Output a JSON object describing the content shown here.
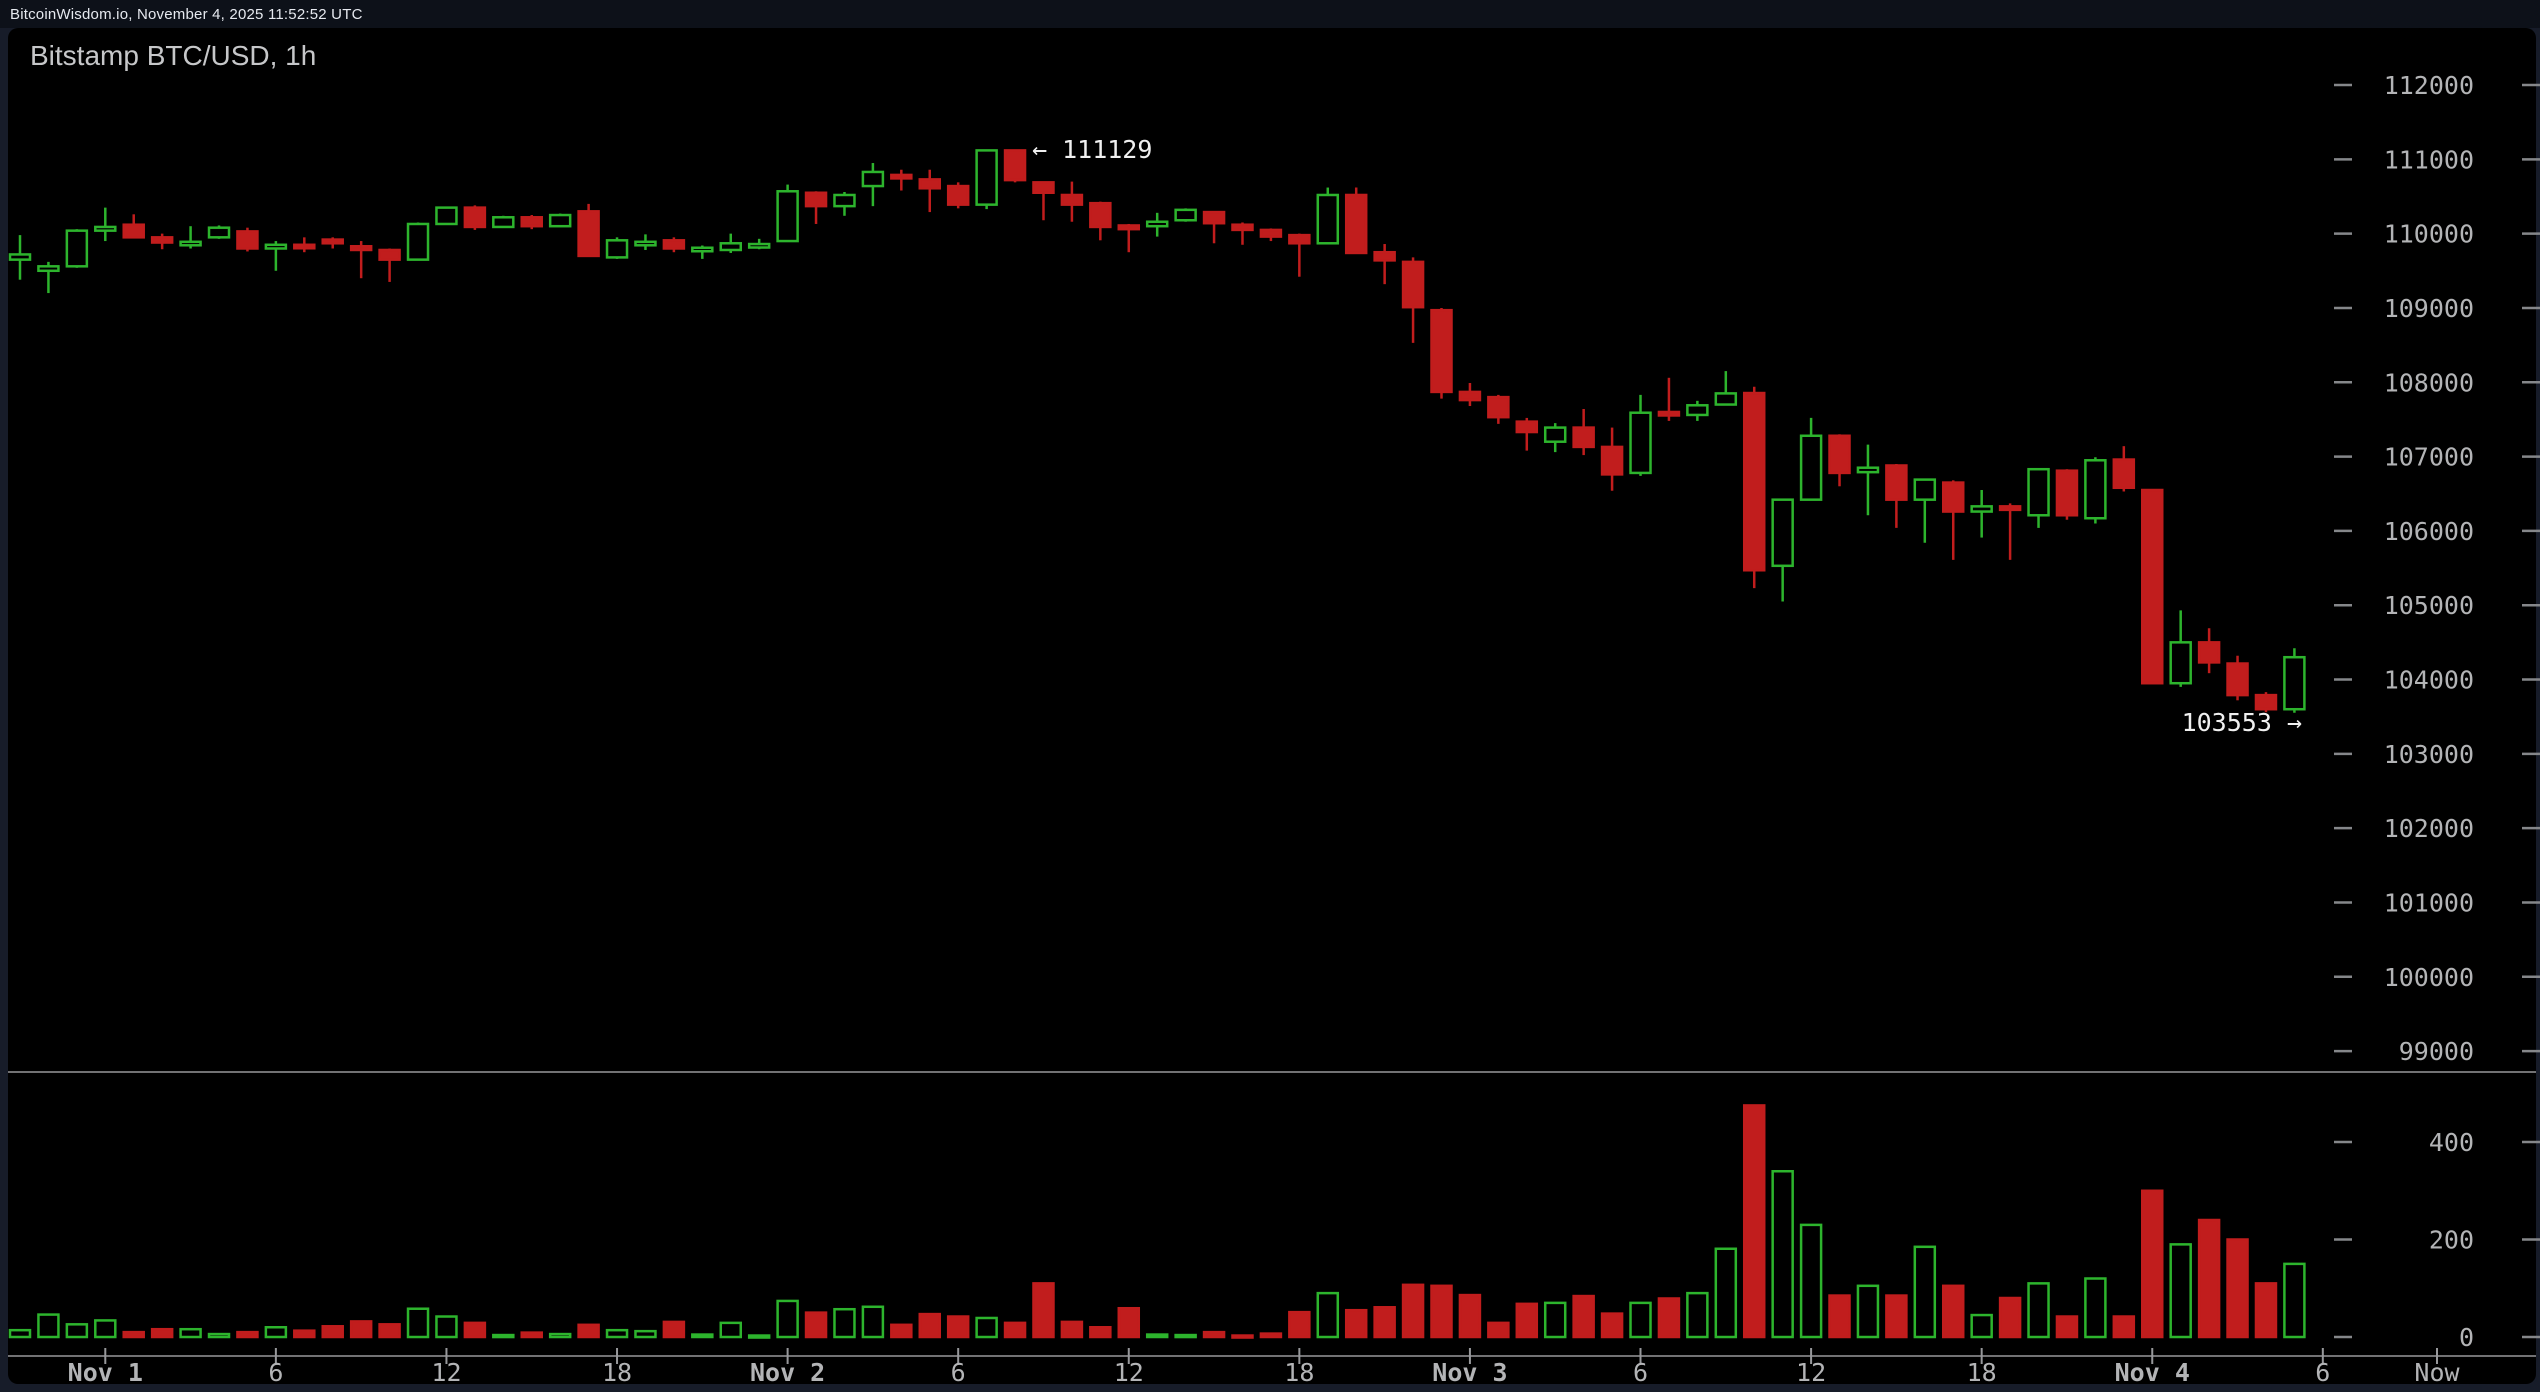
{
  "header": {
    "status_line": "BitcoinWisdom.io, November 4, 2025 11:52:52 UTC"
  },
  "main": {
    "title": "Bitstamp BTC/USD, 1h"
  },
  "colors": {
    "up": "#2db42d",
    "down": "#c11d1d",
    "annotation_text": "#f0f0f0",
    "axis_text": "#b3b4b6",
    "axis_line": "#97989b",
    "tick_dash": "#85878a",
    "panel_bg": "#000000",
    "page_bg": "#171c29",
    "header_bg": "#0d1119",
    "header_text": "#e6e9ef",
    "title_text": "#c6c7c9"
  },
  "chart_data": {
    "type": "candlestick",
    "title": "Bitstamp BTC/USD, 1h",
    "interval": "1h",
    "grid": false,
    "legend": false,
    "price_axis": {
      "side": "right",
      "ticks": [
        112000,
        111000,
        110000,
        109000,
        108000,
        107000,
        106000,
        105000,
        104000,
        103000,
        102000,
        101000,
        100000,
        99000
      ],
      "ylim": [
        98650,
        112470
      ]
    },
    "volume_axis": {
      "side": "right",
      "ticks": [
        400,
        200,
        0
      ],
      "ylim": [
        0,
        540
      ]
    },
    "time_axis": {
      "start": "Oct 31 21:00",
      "labels": [
        {
          "text": "Nov 1",
          "hour": 0,
          "day": true
        },
        {
          "text": "6",
          "hour": 6,
          "day": false
        },
        {
          "text": "12",
          "hour": 12,
          "day": false
        },
        {
          "text": "18",
          "hour": 18,
          "day": false
        },
        {
          "text": "Nov 2",
          "hour": 24,
          "day": true
        },
        {
          "text": "6",
          "hour": 30,
          "day": false
        },
        {
          "text": "12",
          "hour": 36,
          "day": false
        },
        {
          "text": "18",
          "hour": 42,
          "day": false
        },
        {
          "text": "Nov 3",
          "hour": 48,
          "day": true
        },
        {
          "text": "6",
          "hour": 54,
          "day": false
        },
        {
          "text": "12",
          "hour": 60,
          "day": false
        },
        {
          "text": "18",
          "hour": 66,
          "day": false
        },
        {
          "text": "Nov 4",
          "hour": 72,
          "day": true
        },
        {
          "text": "6",
          "hour": 78,
          "day": false
        },
        {
          "text": "Now",
          "x": 2437,
          "day": false
        }
      ]
    },
    "annotations": {
      "high": {
        "text": "← 111129",
        "value": 111129
      },
      "low": {
        "text": "103553 →",
        "value": 103553
      }
    },
    "series_format": [
      "open",
      "high",
      "low",
      "close",
      "volume"
    ],
    "candles": [
      [
        109650,
        109980,
        109380,
        109720,
        14
      ],
      [
        109500,
        109620,
        109200,
        109560,
        46
      ],
      [
        109560,
        110060,
        109540,
        110040,
        26
      ],
      [
        110040,
        110350,
        109900,
        110090,
        34
      ],
      [
        110120,
        110260,
        109940,
        109950,
        10
      ],
      [
        109950,
        110000,
        109790,
        109880,
        16
      ],
      [
        109860,
        110100,
        109800,
        109890,
        16
      ],
      [
        109950,
        110110,
        109930,
        110080,
        6
      ],
      [
        110030,
        110080,
        109760,
        109800,
        10
      ],
      [
        109800,
        109900,
        109500,
        109850,
        20
      ],
      [
        109850,
        109950,
        109750,
        109840,
        13
      ],
      [
        109920,
        109950,
        109800,
        109870,
        22
      ],
      [
        109830,
        109900,
        109400,
        109780,
        32
      ],
      [
        109780,
        109800,
        109350,
        109650,
        26
      ],
      [
        109650,
        110150,
        109640,
        110130,
        58
      ],
      [
        110130,
        110360,
        110120,
        110350,
        42
      ],
      [
        110350,
        110380,
        110050,
        110090,
        29
      ],
      [
        110090,
        110240,
        110080,
        110220,
        4
      ],
      [
        110220,
        110250,
        110060,
        110100,
        9
      ],
      [
        110100,
        110270,
        110090,
        110250,
        6
      ],
      [
        110300,
        110400,
        109690,
        109700,
        25
      ],
      [
        109680,
        109950,
        109660,
        109910,
        14
      ],
      [
        109850,
        109990,
        109780,
        109890,
        12
      ],
      [
        109910,
        109950,
        109750,
        109800,
        31
      ],
      [
        109780,
        109840,
        109660,
        109810,
        5
      ],
      [
        109780,
        110000,
        109740,
        109870,
        29
      ],
      [
        109830,
        109930,
        109790,
        109860,
        3
      ],
      [
        109900,
        110660,
        109890,
        110570,
        74
      ],
      [
        110550,
        110570,
        110130,
        110370,
        50
      ],
      [
        110370,
        110560,
        110240,
        110520,
        57
      ],
      [
        110640,
        110950,
        110370,
        110830,
        62
      ],
      [
        110790,
        110860,
        110580,
        110760,
        25
      ],
      [
        110730,
        110860,
        110290,
        110610,
        47
      ],
      [
        110640,
        110690,
        110340,
        110390,
        42
      ],
      [
        110390,
        111125,
        110330,
        111120,
        39
      ],
      [
        111120,
        111129,
        110690,
        110720,
        29
      ],
      [
        110690,
        110700,
        110180,
        110550,
        110
      ],
      [
        110520,
        110700,
        110160,
        110390,
        31
      ],
      [
        110410,
        110430,
        109910,
        110090,
        20
      ],
      [
        110110,
        110130,
        109750,
        110060,
        59
      ],
      [
        110100,
        110280,
        109960,
        110160,
        5
      ],
      [
        110180,
        110340,
        110160,
        110320,
        4
      ],
      [
        110290,
        110300,
        109870,
        110140,
        10
      ],
      [
        110120,
        110150,
        109850,
        110050,
        3
      ],
      [
        110050,
        110070,
        109900,
        109960,
        7
      ],
      [
        109980,
        110000,
        109420,
        109870,
        51
      ],
      [
        109870,
        110620,
        109860,
        110520,
        90
      ],
      [
        110520,
        110620,
        109730,
        109740,
        55
      ],
      [
        109750,
        109860,
        109320,
        109640,
        61
      ],
      [
        109620,
        109680,
        108530,
        109010,
        107
      ],
      [
        108970,
        109000,
        107780,
        107870,
        105
      ],
      [
        107870,
        107990,
        107680,
        107760,
        86
      ],
      [
        107800,
        107830,
        107440,
        107530,
        29
      ],
      [
        107470,
        107520,
        107080,
        107330,
        68
      ],
      [
        107200,
        107450,
        107060,
        107390,
        70
      ],
      [
        107390,
        107640,
        107020,
        107130,
        84
      ],
      [
        107130,
        107390,
        106540,
        106760,
        48
      ],
      [
        106780,
        107830,
        106740,
        107590,
        70
      ],
      [
        107600,
        108060,
        107480,
        107570,
        79
      ],
      [
        107560,
        107750,
        107480,
        107690,
        90
      ],
      [
        107700,
        108150,
        107690,
        107850,
        181
      ],
      [
        107855,
        107940,
        105230,
        105470,
        475
      ],
      [
        105530,
        106430,
        105050,
        106420,
        340
      ],
      [
        106420,
        107520,
        106410,
        107280,
        230
      ],
      [
        107280,
        107300,
        106600,
        106780,
        85
      ],
      [
        106790,
        107160,
        106210,
        106850,
        105
      ],
      [
        106880,
        106900,
        106040,
        106420,
        85
      ],
      [
        106420,
        106700,
        105840,
        106690,
        185
      ],
      [
        106650,
        106680,
        105610,
        106260,
        105
      ],
      [
        106260,
        106550,
        105910,
        106330,
        45
      ],
      [
        106330,
        106370,
        105610,
        106290,
        80
      ],
      [
        106210,
        106840,
        106040,
        106830,
        110
      ],
      [
        106810,
        106830,
        106150,
        106210,
        42
      ],
      [
        106170,
        106990,
        106100,
        106950,
        120
      ],
      [
        106960,
        107140,
        106530,
        106580,
        42
      ],
      [
        106550,
        106560,
        103950,
        103950,
        300
      ],
      [
        103950,
        104930,
        103900,
        104500,
        190
      ],
      [
        104500,
        104690,
        104085,
        104230,
        240
      ],
      [
        104215,
        104320,
        103720,
        103790,
        200
      ],
      [
        103790,
        103830,
        103560,
        103600,
        110
      ],
      [
        103600,
        104420,
        103553,
        104300,
        150
      ]
    ]
  }
}
